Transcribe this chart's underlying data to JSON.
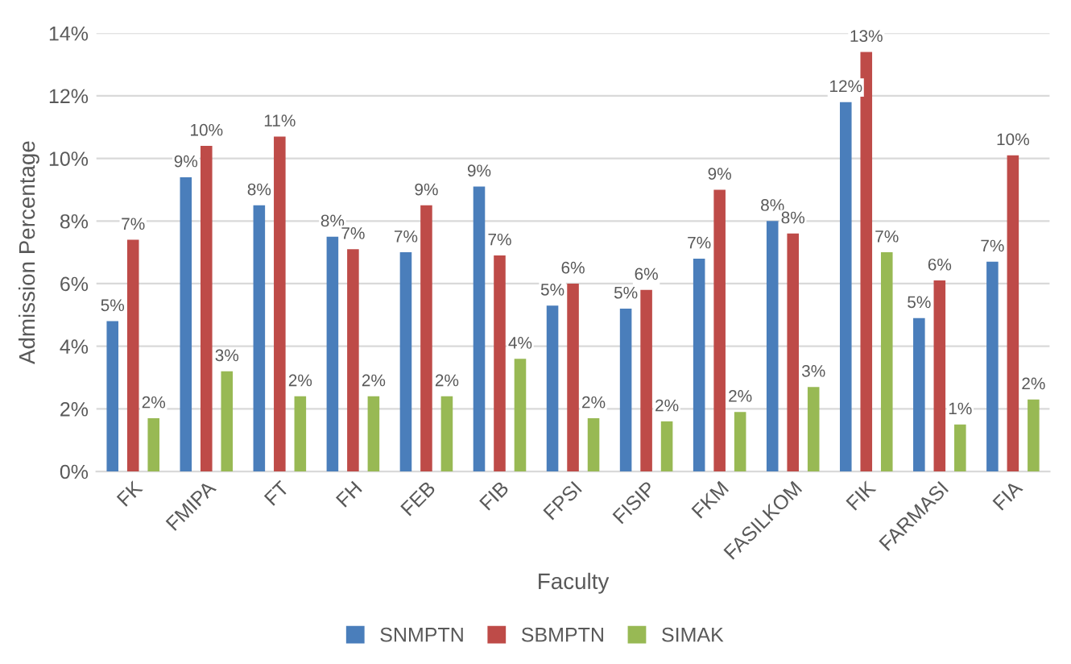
{
  "chart_data": {
    "type": "bar",
    "xlabel": "Faculty",
    "ylabel": "Admission Percentage",
    "categories": [
      "FK",
      "FMIPA",
      "FT",
      "FH",
      "FEB",
      "FIB",
      "FPSI",
      "FISIP",
      "FKM",
      "FASILKOM",
      "FIK",
      "FARMASI",
      "FIA"
    ],
    "series": [
      {
        "name": "SNMPTN",
        "color": "#4a7ebb",
        "values": [
          4.8,
          9.4,
          8.5,
          7.5,
          7.0,
          9.1,
          5.3,
          5.2,
          6.8,
          8.0,
          11.8,
          4.9,
          6.7
        ],
        "value_labels": [
          "5%",
          "9%",
          "8%",
          "8%",
          "7%",
          "9%",
          "5%",
          "5%",
          "7%",
          "8%",
          "12%",
          "5%",
          "7%"
        ]
      },
      {
        "name": "SBMPTN",
        "color": "#be4b48",
        "values": [
          7.4,
          10.4,
          10.7,
          7.1,
          8.5,
          6.9,
          6.0,
          5.8,
          9.0,
          7.6,
          13.4,
          6.1,
          10.1
        ],
        "value_labels": [
          "7%",
          "10%",
          "11%",
          "7%",
          "9%",
          "7%",
          "6%",
          "6%",
          "9%",
          "8%",
          "13%",
          "6%",
          "10%"
        ]
      },
      {
        "name": "SIMAK",
        "color": "#98b954",
        "values": [
          1.7,
          3.2,
          2.4,
          2.4,
          2.4,
          3.6,
          1.7,
          1.6,
          1.9,
          2.7,
          7.0,
          1.5,
          2.3
        ],
        "value_labels": [
          "2%",
          "3%",
          "2%",
          "2%",
          "2%",
          "4%",
          "2%",
          "2%",
          "2%",
          "3%",
          "7%",
          "1%",
          "2%"
        ]
      }
    ],
    "ylim": [
      0,
      14
    ],
    "yticks": [
      {
        "value": 0,
        "label": "0%"
      },
      {
        "value": 2,
        "label": "2%"
      },
      {
        "value": 4,
        "label": "4%"
      },
      {
        "value": 6,
        "label": "6%"
      },
      {
        "value": 8,
        "label": "8%"
      },
      {
        "value": 10,
        "label": "10%"
      },
      {
        "value": 12,
        "label": "12%"
      },
      {
        "value": 14,
        "label": "14%"
      }
    ],
    "grid": "y",
    "legend": "bottom"
  }
}
